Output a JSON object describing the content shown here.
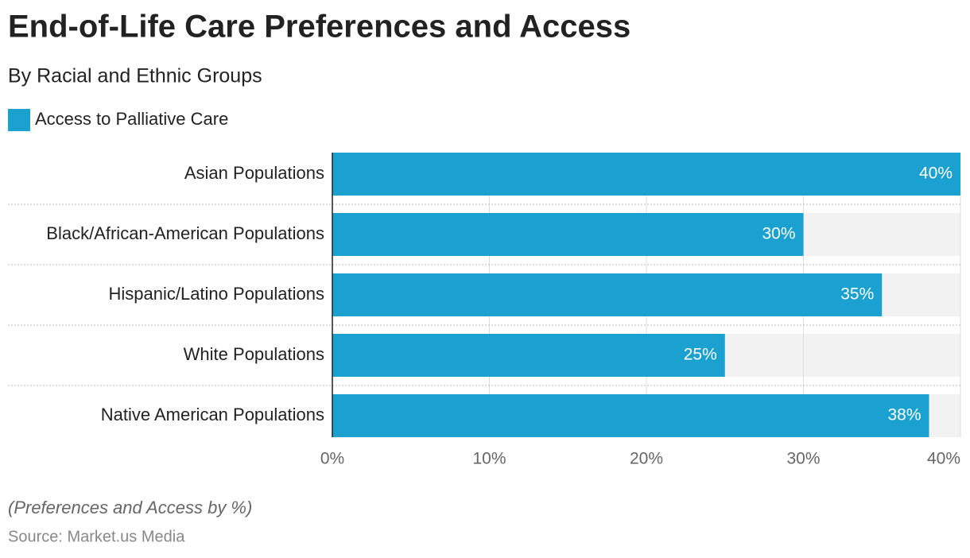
{
  "chart_data": {
    "type": "bar",
    "orientation": "horizontal",
    "title": "End-of-Life Care Preferences and Access",
    "subtitle": "By Racial and Ethnic Groups",
    "categories": [
      "Asian Populations",
      "Black/African-American Populations",
      "Hispanic/Latino Populations",
      "White Populations",
      "Native American Populations"
    ],
    "series": [
      {
        "name": "Access to Palliative Care",
        "color": "#1ba1cf",
        "values": [
          40,
          30,
          35,
          25,
          38
        ],
        "value_labels": [
          "40%",
          "30%",
          "35%",
          "25%",
          "38%"
        ]
      }
    ],
    "xlim": [
      0,
      40
    ],
    "xticks": [
      {
        "value": 0,
        "label": "0%"
      },
      {
        "value": 10,
        "label": "10%"
      },
      {
        "value": 20,
        "label": "20%"
      },
      {
        "value": 30,
        "label": "30%"
      },
      {
        "value": 40,
        "label": "40%"
      }
    ],
    "grid": true,
    "note": "(Preferences and Access by %)",
    "source": "Source: Market.us Media"
  }
}
